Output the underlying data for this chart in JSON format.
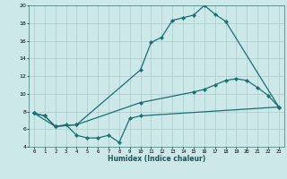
{
  "xlabel": "Humidex (Indice chaleur)",
  "bg_color": "#cce8e8",
  "grid_color": "#aacccc",
  "line_color": "#1a7070",
  "xlim": [
    -0.5,
    23.5
  ],
  "ylim": [
    4,
    20
  ],
  "yticks": [
    4,
    6,
    8,
    10,
    12,
    14,
    16,
    18,
    20
  ],
  "xticks": [
    0,
    1,
    2,
    3,
    4,
    5,
    6,
    7,
    8,
    9,
    10,
    11,
    12,
    13,
    14,
    15,
    16,
    17,
    18,
    19,
    20,
    21,
    22,
    23
  ],
  "curve1_x": [
    0,
    1,
    2,
    4,
    10,
    11,
    12,
    13,
    14,
    15,
    16,
    17,
    18,
    23
  ],
  "curve1_y": [
    7.8,
    7.5,
    6.3,
    6.5,
    12.7,
    15.8,
    16.4,
    18.3,
    18.6,
    18.9,
    20.0,
    19.0,
    18.2,
    8.5
  ],
  "curve2_x": [
    0,
    2,
    4,
    10,
    15,
    16,
    17,
    18,
    19,
    20,
    21,
    22,
    23
  ],
  "curve2_y": [
    7.8,
    6.3,
    6.5,
    9.0,
    10.2,
    10.5,
    11.0,
    11.5,
    11.7,
    11.5,
    10.7,
    9.8,
    8.5
  ],
  "curve3_x": [
    0,
    1,
    2,
    3,
    4,
    5,
    6,
    7,
    8,
    9,
    10,
    23
  ],
  "curve3_y": [
    7.8,
    7.5,
    6.3,
    6.5,
    5.3,
    5.0,
    5.0,
    5.3,
    4.5,
    7.2,
    7.5,
    8.5
  ]
}
